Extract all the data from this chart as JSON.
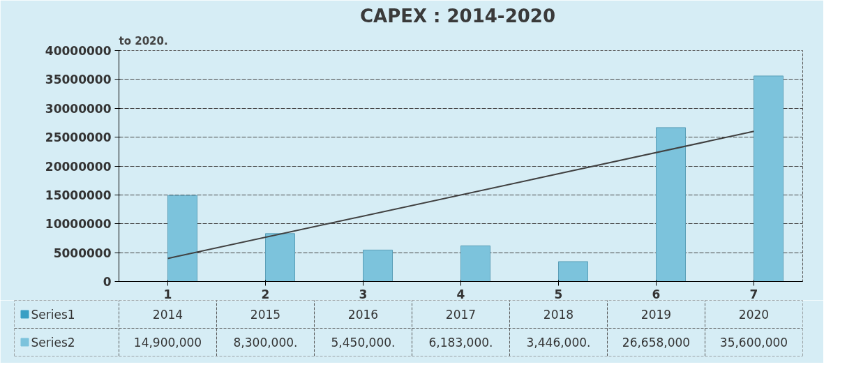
{
  "chart_data": {
    "type": "bar",
    "title": "CAPEX  : 2014-2020",
    "annotations": [
      "to 2020."
    ],
    "categories": [
      "1",
      "2",
      "3",
      "4",
      "5",
      "6",
      "7"
    ],
    "series": [
      {
        "name": "Series1",
        "color": "#3a9fc4",
        "values": [
          2014,
          2015,
          2016,
          2017,
          2018,
          2019,
          2020
        ],
        "value_labels": [
          "2014",
          "2015",
          "2016",
          "2017",
          "2018",
          "2019",
          "2020"
        ]
      },
      {
        "name": "Series2",
        "color": "#7cc3dc",
        "values": [
          14900000,
          8300000,
          5450000,
          6183000,
          3446000,
          26658000,
          35600000
        ],
        "value_labels": [
          "14,900,000",
          "8,300,000.",
          "5,450,000.",
          "6,183,000.",
          "3,446,000.",
          "26,658,000",
          "35,600,000"
        ]
      },
      {
        "type": "line",
        "color": "#404040",
        "values": [
          4000000,
          null,
          null,
          null,
          null,
          null,
          26000000
        ]
      }
    ],
    "ylim": [
      0,
      40000000
    ],
    "yticks": [
      0,
      5000000,
      10000000,
      15000000,
      20000000,
      25000000,
      30000000,
      35000000,
      40000000
    ],
    "grid": "y",
    "legend": "bottom left"
  }
}
